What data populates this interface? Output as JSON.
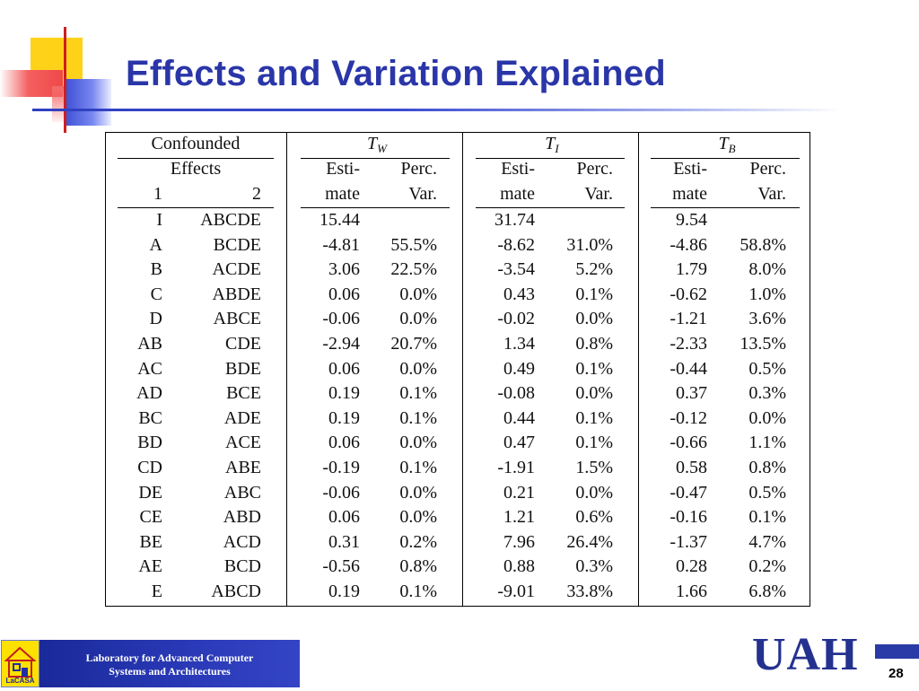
{
  "slide": {
    "title": "Effects and Variation Explained",
    "page_number": "28"
  },
  "table": {
    "header": {
      "confounded": "Confounded",
      "effects": "Effects",
      "col1": "1",
      "col2": "2",
      "groups": [
        {
          "sym": "T",
          "sub": "W",
          "est1": "Esti-",
          "est2": "mate",
          "pv1": "Perc.",
          "pv2": "Var."
        },
        {
          "sym": "T",
          "sub": "I",
          "est1": "Esti-",
          "est2": "mate",
          "pv1": "Perc.",
          "pv2": "Var."
        },
        {
          "sym": "T",
          "sub": "B",
          "est1": "Esti-",
          "est2": "mate",
          "pv1": "Perc.",
          "pv2": "Var."
        }
      ]
    },
    "rows": [
      [
        "I",
        "ABCDE",
        "15.44",
        "",
        "31.74",
        "",
        "9.54",
        ""
      ],
      [
        "A",
        "BCDE",
        "-4.81",
        "55.5%",
        "-8.62",
        "31.0%",
        "-4.86",
        "58.8%"
      ],
      [
        "B",
        "ACDE",
        "3.06",
        "22.5%",
        "-3.54",
        "5.2%",
        "1.79",
        "8.0%"
      ],
      [
        "C",
        "ABDE",
        "0.06",
        "0.0%",
        "0.43",
        "0.1%",
        "-0.62",
        "1.0%"
      ],
      [
        "D",
        "ABCE",
        "-0.06",
        "0.0%",
        "-0.02",
        "0.0%",
        "-1.21",
        "3.6%"
      ],
      [
        "AB",
        "CDE",
        "-2.94",
        "20.7%",
        "1.34",
        "0.8%",
        "-2.33",
        "13.5%"
      ],
      [
        "AC",
        "BDE",
        "0.06",
        "0.0%",
        "0.49",
        "0.1%",
        "-0.44",
        "0.5%"
      ],
      [
        "AD",
        "BCE",
        "0.19",
        "0.1%",
        "-0.08",
        "0.0%",
        "0.37",
        "0.3%"
      ],
      [
        "BC",
        "ADE",
        "0.19",
        "0.1%",
        "0.44",
        "0.1%",
        "-0.12",
        "0.0%"
      ],
      [
        "BD",
        "ACE",
        "0.06",
        "0.0%",
        "0.47",
        "0.1%",
        "-0.66",
        "1.1%"
      ],
      [
        "CD",
        "ABE",
        "-0.19",
        "0.1%",
        "-1.91",
        "1.5%",
        "0.58",
        "0.8%"
      ],
      [
        "DE",
        "ABC",
        "-0.06",
        "0.0%",
        "0.21",
        "0.0%",
        "-0.47",
        "0.5%"
      ],
      [
        "CE",
        "ABD",
        "0.06",
        "0.0%",
        "1.21",
        "0.6%",
        "-0.16",
        "0.1%"
      ],
      [
        "BE",
        "ACD",
        "0.31",
        "0.2%",
        "7.96",
        "26.4%",
        "-1.37",
        "4.7%"
      ],
      [
        "AE",
        "BCD",
        "-0.56",
        "0.8%",
        "0.88",
        "0.3%",
        "0.28",
        "0.2%"
      ],
      [
        "E",
        "ABCD",
        "0.19",
        "0.1%",
        "-9.01",
        "33.8%",
        "1.66",
        "6.8%"
      ]
    ]
  },
  "footer": {
    "lab_line1": "Laboratory for Advanced Computer",
    "lab_line2": "Systems and Architectures",
    "logo_caption": "LaCASA",
    "uah_logo_text": "UAH"
  }
}
